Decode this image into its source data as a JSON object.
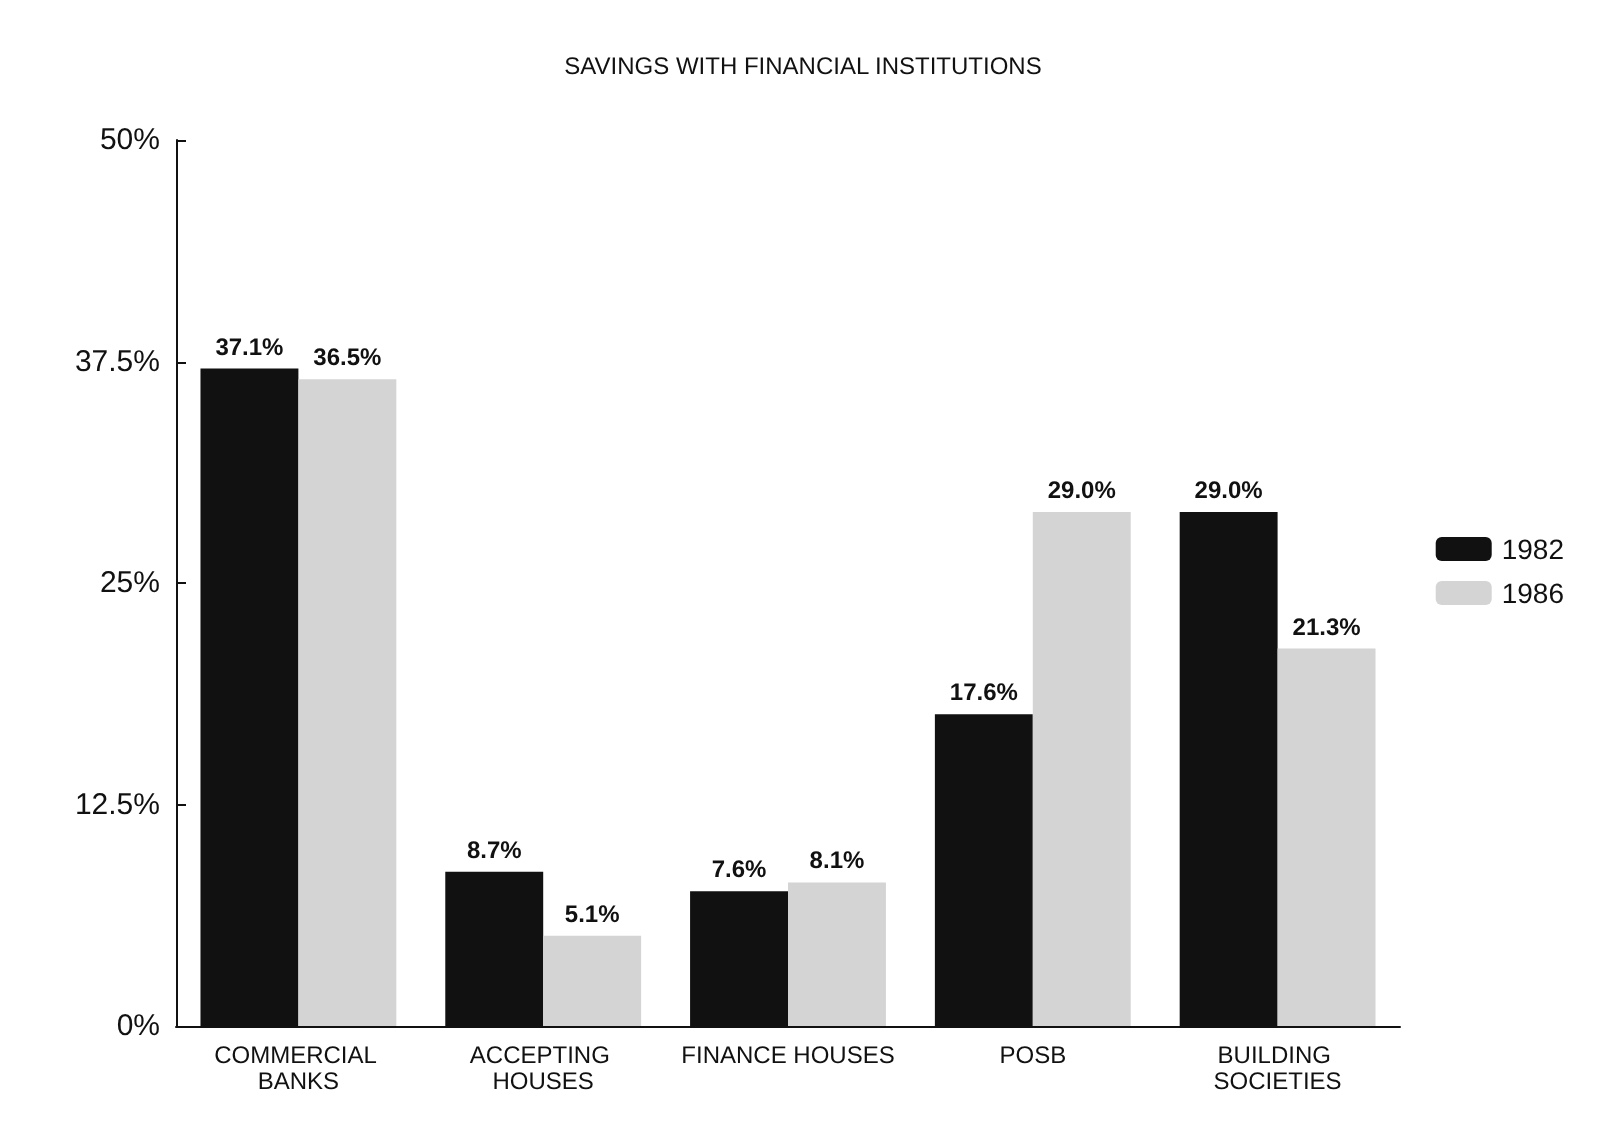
{
  "chart_data": {
    "type": "bar",
    "title": "SAVINGS WITH FINANCIAL INSTITUTIONS",
    "categories": [
      "COMMERCIAL BANKS",
      "ACCEPTING HOUSES",
      "FINANCE HOUSES",
      "POSB",
      "BUILDING SOCIETIES"
    ],
    "series": [
      {
        "name": "1982",
        "color": "#111111",
        "values": [
          37.1,
          8.7,
          7.6,
          17.6,
          29.0
        ],
        "value_labels": [
          "37.1%",
          "8.7%",
          "7.6%",
          "17.6%",
          "29.0%"
        ]
      },
      {
        "name": "1986",
        "color": "#d4d4d4",
        "values": [
          36.5,
          5.1,
          8.1,
          29.0,
          21.3
        ],
        "value_labels": [
          "36.5%",
          "5.1%",
          "8.1%",
          "29.0%",
          "21.3%"
        ]
      }
    ],
    "ylim": [
      0,
      50
    ],
    "yticks": [
      {
        "value": 0,
        "label": "0%"
      },
      {
        "value": 12.5,
        "label": "12.5%"
      },
      {
        "value": 25,
        "label": "25%"
      },
      {
        "value": 37.5,
        "label": "37.5%"
      },
      {
        "value": 50,
        "label": "50%"
      }
    ],
    "grid": false,
    "legend": "right"
  }
}
